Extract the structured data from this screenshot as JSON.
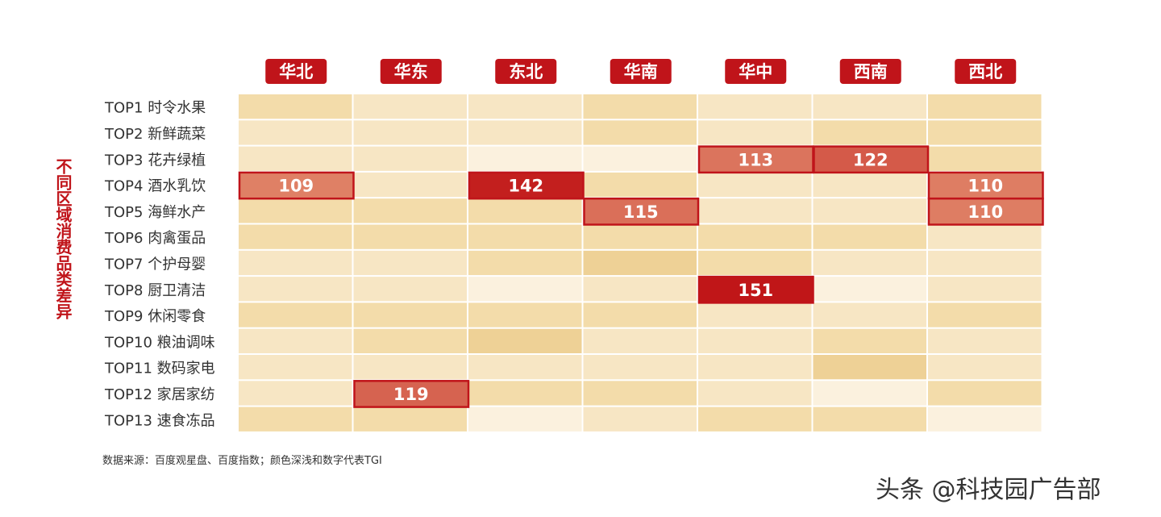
{
  "vertical_title": "不同区域消费品类差异",
  "source_note": "数据来源：百度观星盘、百度指数；颜色深浅和数字代表TGI",
  "watermark": "头条 @科技园广告部",
  "colors": {
    "accent": "#c0141a",
    "cell_light": "#fbf1de",
    "cell_base": "#f5dfb0",
    "cell_medium": "#efd49a"
  },
  "chart_data": {
    "type": "heatmap",
    "title": "",
    "columns": [
      "华北",
      "华东",
      "东北",
      "华南",
      "华中",
      "西南",
      "西北"
    ],
    "rows": [
      "TOP1  时令水果",
      "TOP2  新鲜蔬菜",
      "TOP3  花卉绿植",
      "TOP4  酒水乳饮",
      "TOP5  海鲜水产",
      "TOP6  肉禽蛋品",
      "TOP7  个护母婴",
      "TOP8  厨卫清洁",
      "TOP9  休闲零食",
      "TOP10 粮油调味",
      "TOP11 数码家电",
      "TOP12 家居家纺",
      "TOP13 速食冻品"
    ],
    "values": [
      [
        null,
        null,
        null,
        null,
        null,
        null,
        null
      ],
      [
        null,
        null,
        null,
        null,
        null,
        null,
        null
      ],
      [
        null,
        null,
        null,
        null,
        113,
        122,
        null
      ],
      [
        109,
        null,
        142,
        null,
        null,
        null,
        110
      ],
      [
        null,
        null,
        null,
        115,
        null,
        null,
        110
      ],
      [
        null,
        null,
        null,
        null,
        null,
        null,
        null
      ],
      [
        null,
        null,
        null,
        null,
        null,
        null,
        null
      ],
      [
        null,
        null,
        null,
        null,
        151,
        null,
        null
      ],
      [
        null,
        null,
        null,
        null,
        null,
        null,
        null
      ],
      [
        null,
        null,
        null,
        null,
        null,
        null,
        null
      ],
      [
        null,
        null,
        null,
        null,
        null,
        null,
        null
      ],
      [
        null,
        119,
        null,
        null,
        null,
        null,
        null
      ],
      [
        null,
        null,
        null,
        null,
        null,
        null,
        null
      ]
    ],
    "shade_levels": [
      [
        2,
        1,
        1,
        2,
        1,
        1,
        2
      ],
      [
        1,
        1,
        1,
        2,
        1,
        2,
        2
      ],
      [
        1,
        1,
        0,
        0,
        null,
        null,
        2
      ],
      [
        null,
        1,
        null,
        2,
        1,
        1,
        null
      ],
      [
        2,
        2,
        2,
        null,
        1,
        1,
        null
      ],
      [
        2,
        2,
        2,
        2,
        2,
        2,
        1
      ],
      [
        1,
        1,
        2,
        3,
        2,
        1,
        1
      ],
      [
        1,
        1,
        0,
        1,
        null,
        0,
        1
      ],
      [
        2,
        2,
        2,
        2,
        1,
        1,
        2
      ],
      [
        1,
        2,
        3,
        1,
        1,
        2,
        1
      ],
      [
        1,
        1,
        1,
        1,
        1,
        3,
        1
      ],
      [
        1,
        null,
        2,
        2,
        1,
        0,
        2
      ],
      [
        2,
        2,
        0,
        1,
        2,
        2,
        0
      ]
    ],
    "grid": true,
    "legend": "none"
  }
}
